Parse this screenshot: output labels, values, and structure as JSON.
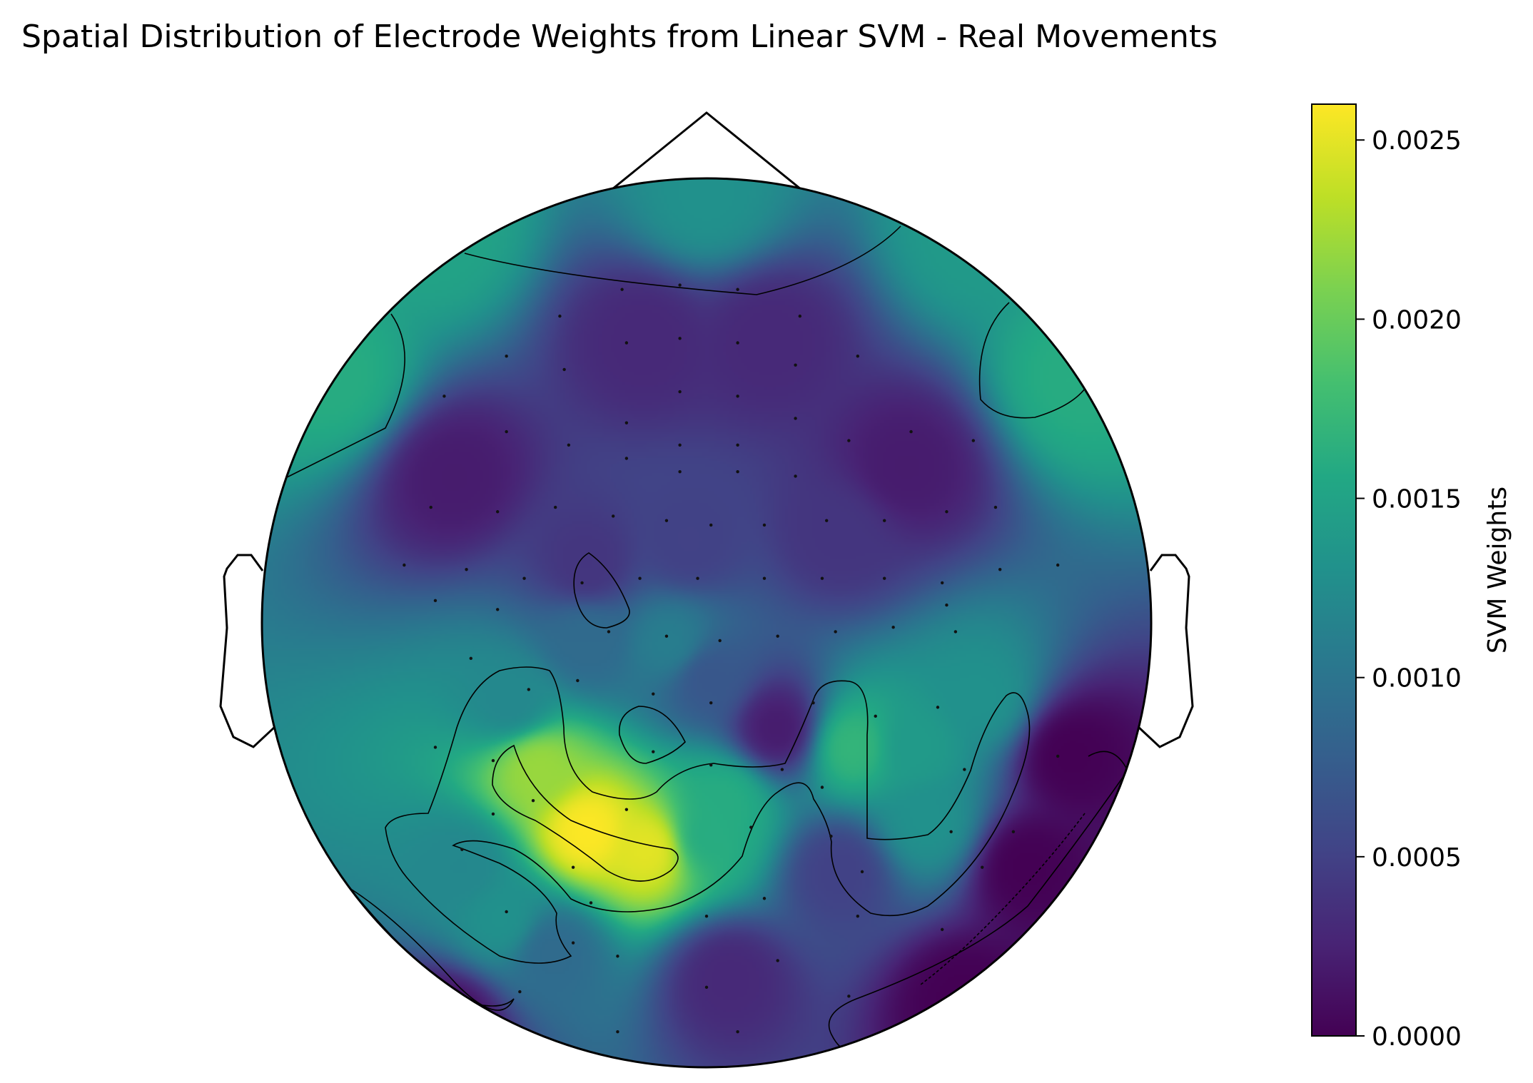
{
  "chart_data": {
    "type": "heatmap",
    "title": "Spatial Distribution of Electrode Weights from Linear SVM - Real Movements",
    "colorbar": {
      "label": "SVM Weights",
      "range": [
        0.0,
        0.0026
      ],
      "ticks": [
        "0.0000",
        "0.0005",
        "0.0010",
        "0.0015",
        "0.0020",
        "0.0025"
      ],
      "tick_values": [
        0.0,
        0.0005,
        0.001,
        0.0015,
        0.002,
        0.0025
      ],
      "colormap": "viridis"
    },
    "electrode_weights": [
      {
        "x": -0.61,
        "y": 0.88,
        "w": 0.0015
      },
      {
        "x": 0.0,
        "y": 0.96,
        "w": 0.0013
      },
      {
        "x": 0.61,
        "y": 0.88,
        "w": 0.0014
      },
      {
        "x": -0.84,
        "y": 0.55,
        "w": 0.0016
      },
      {
        "x": 0.84,
        "y": 0.55,
        "w": 0.0016
      },
      {
        "x": -0.14,
        "y": 0.64,
        "w": 0.0003
      },
      {
        "x": 0.14,
        "y": 0.64,
        "w": 0.0003
      },
      {
        "x": -0.57,
        "y": 0.33,
        "w": 0.0002
      },
      {
        "x": 0.45,
        "y": 0.35,
        "w": 0.0002
      },
      {
        "x": -0.04,
        "y": 0.18,
        "w": 0.0005
      },
      {
        "x": -0.27,
        "y": 0.13,
        "w": 0.0004
      },
      {
        "x": 0.3,
        "y": 0.2,
        "w": 0.0004
      },
      {
        "x": -0.27,
        "y": -0.04,
        "w": 0.0009
      },
      {
        "x": -0.08,
        "y": -0.05,
        "w": 0.0011
      },
      {
        "x": 0.0,
        "y": -0.12,
        "w": 0.0007
      },
      {
        "x": 0.16,
        "y": -0.24,
        "w": 0.0002
      },
      {
        "x": -0.44,
        "y": -0.18,
        "w": 0.0012
      },
      {
        "x": -0.38,
        "y": -0.33,
        "w": 0.0022
      },
      {
        "x": -0.27,
        "y": -0.47,
        "w": 0.0026
      },
      {
        "x": -0.13,
        "y": -0.51,
        "w": 0.0025
      },
      {
        "x": 0.0,
        "y": -0.48,
        "w": 0.0016
      },
      {
        "x": 0.04,
        "y": -0.4,
        "w": 0.0016
      },
      {
        "x": 0.33,
        "y": -0.28,
        "w": 0.0017
      },
      {
        "x": 0.47,
        "y": -0.28,
        "w": 0.0014
      },
      {
        "x": 0.62,
        "y": -0.17,
        "w": 0.0013
      },
      {
        "x": 0.5,
        "y": -0.45,
        "w": 0.0013
      },
      {
        "x": -0.55,
        "y": -0.55,
        "w": 0.0012
      },
      {
        "x": -0.46,
        "y": -0.67,
        "w": 0.0013
      },
      {
        "x": -0.35,
        "y": -0.74,
        "w": 0.0009
      },
      {
        "x": 0.3,
        "y": -0.56,
        "w": 0.0005
      },
      {
        "x": 0.05,
        "y": -0.8,
        "w": 0.0003
      },
      {
        "x": -0.58,
        "y": -0.9,
        "w": 0.0001
      },
      {
        "x": 0.72,
        "y": -0.55,
        "w": 0.0
      },
      {
        "x": 0.58,
        "y": -0.85,
        "w": 0.0
      },
      {
        "x": 0.82,
        "y": -0.3,
        "w": 0.0
      }
    ],
    "electrode_positions": [
      [
        -0.19,
        0.75
      ],
      [
        -0.06,
        0.76
      ],
      [
        0.07,
        0.75
      ],
      [
        -0.33,
        0.69
      ],
      [
        0.21,
        0.69
      ],
      [
        -0.18,
        0.63
      ],
      [
        -0.06,
        0.64
      ],
      [
        0.07,
        0.63
      ],
      [
        -0.45,
        0.6
      ],
      [
        -0.32,
        0.57
      ],
      [
        0.2,
        0.58
      ],
      [
        0.34,
        0.6
      ],
      [
        -0.06,
        0.52
      ],
      [
        0.07,
        0.51
      ],
      [
        -0.59,
        0.51
      ],
      [
        -0.45,
        0.43
      ],
      [
        -0.31,
        0.4
      ],
      [
        -0.18,
        0.45
      ],
      [
        -0.06,
        0.4
      ],
      [
        0.07,
        0.4
      ],
      [
        0.2,
        0.46
      ],
      [
        0.32,
        0.41
      ],
      [
        0.46,
        0.43
      ],
      [
        0.6,
        0.41
      ],
      [
        -0.18,
        0.37
      ],
      [
        -0.06,
        0.34
      ],
      [
        0.07,
        0.34
      ],
      [
        0.2,
        0.33
      ],
      [
        -0.62,
        0.26
      ],
      [
        -0.47,
        0.25
      ],
      [
        -0.34,
        0.26
      ],
      [
        -0.21,
        0.24
      ],
      [
        -0.09,
        0.23
      ],
      [
        0.01,
        0.22
      ],
      [
        0.13,
        0.22
      ],
      [
        0.27,
        0.23
      ],
      [
        0.4,
        0.23
      ],
      [
        0.54,
        0.25
      ],
      [
        0.65,
        0.26
      ],
      [
        -0.68,
        0.13
      ],
      [
        0.79,
        0.13
      ],
      [
        -0.54,
        0.12
      ],
      [
        -0.41,
        0.1
      ],
      [
        -0.28,
        0.09
      ],
      [
        -0.15,
        0.1
      ],
      [
        -0.02,
        0.1
      ],
      [
        0.13,
        0.1
      ],
      [
        0.26,
        0.1
      ],
      [
        0.4,
        0.1
      ],
      [
        0.53,
        0.09
      ],
      [
        0.66,
        0.12
      ],
      [
        -0.61,
        0.05
      ],
      [
        -0.47,
        0.03
      ],
      [
        0.54,
        0.04
      ],
      [
        -0.22,
        -0.02
      ],
      [
        -0.09,
        -0.03
      ],
      [
        0.03,
        -0.04
      ],
      [
        0.16,
        -0.03
      ],
      [
        0.29,
        -0.02
      ],
      [
        0.42,
        -0.01
      ],
      [
        0.56,
        -0.02
      ],
      [
        -0.53,
        -0.08
      ],
      [
        -0.4,
        -0.15
      ],
      [
        -0.29,
        -0.13
      ],
      [
        -0.12,
        -0.16
      ],
      [
        0.01,
        -0.18
      ],
      [
        0.24,
        -0.18
      ],
      [
        0.38,
        -0.21
      ],
      [
        0.52,
        -0.19
      ],
      [
        -0.61,
        -0.28
      ],
      [
        -0.48,
        -0.31
      ],
      [
        -0.12,
        -0.29
      ],
      [
        0.01,
        -0.32
      ],
      [
        0.17,
        -0.33
      ],
      [
        0.26,
        -0.37
      ],
      [
        0.58,
        -0.33
      ],
      [
        0.79,
        -0.3
      ],
      [
        -0.48,
        -0.43
      ],
      [
        -0.39,
        -0.4
      ],
      [
        -0.18,
        -0.42
      ],
      [
        0.1,
        -0.46
      ],
      [
        0.28,
        -0.48
      ],
      [
        0.55,
        -0.47
      ],
      [
        0.69,
        -0.47
      ],
      [
        -0.55,
        -0.51
      ],
      [
        -0.3,
        -0.55
      ],
      [
        0.35,
        -0.56
      ],
      [
        0.62,
        -0.55
      ],
      [
        -0.45,
        -0.65
      ],
      [
        -0.26,
        -0.63
      ],
      [
        0.0,
        -0.66
      ],
      [
        0.13,
        -0.62
      ],
      [
        0.34,
        -0.66
      ],
      [
        0.53,
        -0.69
      ],
      [
        -0.3,
        -0.72
      ],
      [
        -0.2,
        -0.75
      ],
      [
        0.16,
        -0.76
      ],
      [
        -0.42,
        -0.83
      ],
      [
        0.0,
        -0.82
      ],
      [
        0.32,
        -0.84
      ],
      [
        -0.2,
        -0.92
      ],
      [
        0.07,
        -0.92
      ]
    ]
  }
}
